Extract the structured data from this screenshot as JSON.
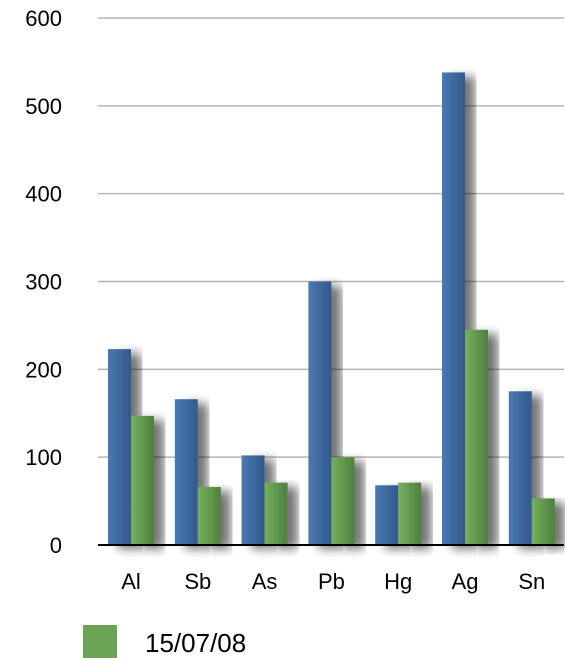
{
  "chart_data": {
    "type": "bar",
    "categories": [
      "Al",
      "Sb",
      "As",
      "Pb",
      "Hg",
      "Ag",
      "Sn"
    ],
    "series": [
      {
        "values": [
          223,
          166,
          102,
          300,
          68,
          538,
          175
        ],
        "color": "#3d6aa0"
      },
      {
        "name": "15/07/08",
        "values": [
          147,
          66,
          71,
          100,
          71,
          245,
          53
        ],
        "color": "#6aa454"
      }
    ],
    "ylim": [
      0,
      600
    ],
    "yticks": [
      0,
      100,
      200,
      300,
      400,
      500,
      600
    ],
    "grid": true,
    "legend_position": "bottom-left",
    "title": "",
    "xlabel": "",
    "ylabel": ""
  }
}
